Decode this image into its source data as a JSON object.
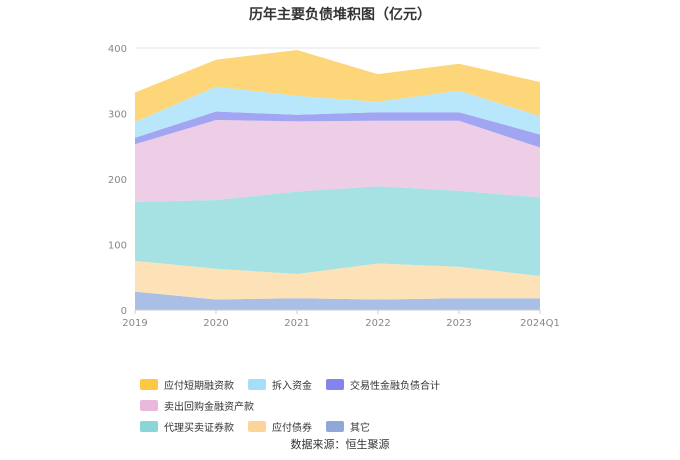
{
  "chart_data": {
    "type": "area",
    "stacked": true,
    "title": "历年主要负债堆积图（亿元）",
    "categories": [
      "2019",
      "2020",
      "2021",
      "2022",
      "2023",
      "2024Q1"
    ],
    "ylim": [
      0,
      400
    ],
    "yticks": [
      "0",
      "100",
      "200",
      "300",
      "400"
    ],
    "grid": true,
    "legend_position": "bottom",
    "series": [
      {
        "name": "其它",
        "color": "#aabfe6",
        "legend_color": "#8fa8d8",
        "values": [
          28,
          16,
          18,
          16,
          18,
          18
        ]
      },
      {
        "name": "应付债券",
        "color": "#fde2b8",
        "legend_color": "#fbd49a",
        "values": [
          47,
          47,
          37,
          55,
          48,
          34
        ]
      },
      {
        "name": "代理买卖证券款",
        "color": "#a6e2e4",
        "legend_color": "#88d6d8",
        "values": [
          90,
          105,
          126,
          118,
          116,
          120
        ]
      },
      {
        "name": "卖出回购金融资产款",
        "color": "#eecde6",
        "legend_color": "#e8b9dc",
        "values": [
          88,
          122,
          107,
          100,
          107,
          76
        ]
      },
      {
        "name": "交易性金融负债合计",
        "color": "#a2a6f2",
        "legend_color": "#8484ec",
        "values": [
          10,
          13,
          10,
          13,
          13,
          20
        ]
      },
      {
        "name": "拆入资金",
        "color": "#b8e6fb",
        "legend_color": "#a6ddf8",
        "values": [
          24,
          38,
          29,
          16,
          33,
          28
        ]
      },
      {
        "name": "应付短期融资款",
        "color": "#fed67a",
        "legend_color": "#fec844",
        "values": [
          45,
          41,
          70,
          42,
          41,
          52
        ]
      }
    ]
  },
  "legend_order": [
    [
      "应付短期融资款",
      "拆入资金",
      "交易性金融负债合计",
      "卖出回购金融资产款"
    ],
    [
      "代理买卖证券款",
      "应付债券",
      "其它"
    ]
  ],
  "source": "数据来源：恒生聚源"
}
